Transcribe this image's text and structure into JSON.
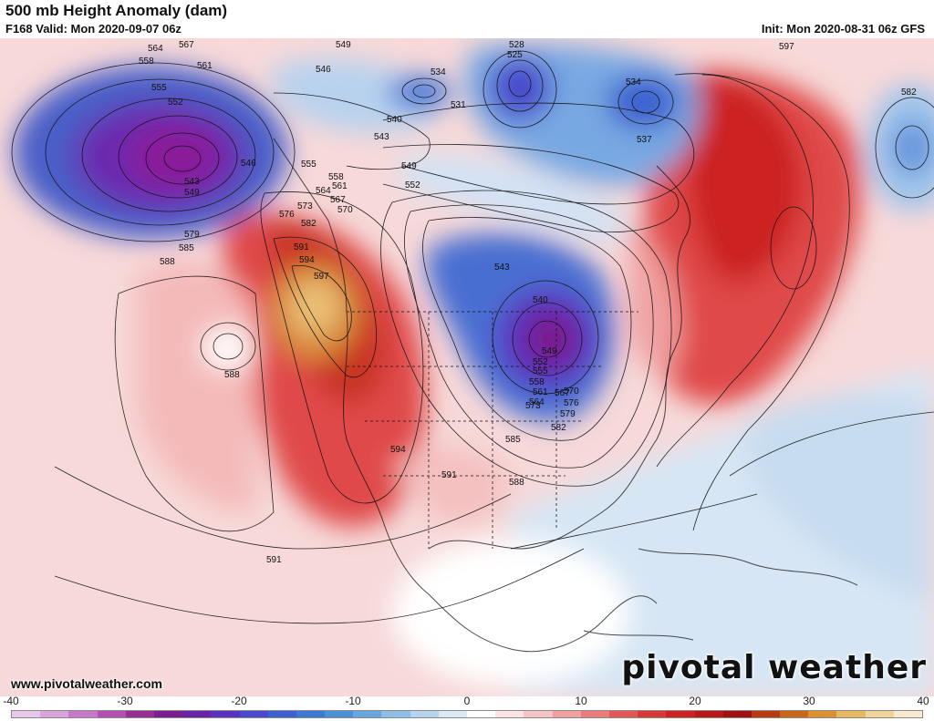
{
  "header": {
    "title": "500 mb Height Anomaly (dam)",
    "valid": "F168 Valid: Mon 2020-09-07 06z",
    "init": "Init: Mon 2020-08-31 06z GFS"
  },
  "footer": {
    "website": "www.pivotalweather.com",
    "brand": "pivotal weather"
  },
  "colorbar": {
    "min": -40,
    "max": 40,
    "tick_labels": [
      "-40",
      "-30",
      "-20",
      "-10",
      "0",
      "10",
      "20",
      "30",
      "40"
    ],
    "colors": [
      "#e8c8ea",
      "#d9a4dc",
      "#c778c8",
      "#b24fb3",
      "#962e96",
      "#7a1f8f",
      "#6a22a8",
      "#5a32c0",
      "#4a48cc",
      "#3e60d0",
      "#3d78d4",
      "#4a90d8",
      "#68a6e0",
      "#8ebde8",
      "#b6d4f0",
      "#dbe9f7",
      "#ffffff",
      "#fbe4e4",
      "#f6c4c4",
      "#f0a0a0",
      "#ea7c7c",
      "#e25858",
      "#d83838",
      "#cc2222",
      "#b81818",
      "#a01212",
      "#b83a12",
      "#cc6618",
      "#dc9030",
      "#e8b860",
      "#f0d49a",
      "#f7ead0"
    ]
  },
  "contour_labels": [
    "564",
    "567",
    "549",
    "558",
    "561",
    "555",
    "552",
    "546",
    "543",
    "549",
    "534",
    "528",
    "525",
    "531",
    "534",
    "537",
    "540",
    "543",
    "546",
    "549",
    "552",
    "555",
    "558",
    "561",
    "564",
    "567",
    "570",
    "573",
    "576",
    "579",
    "582",
    "585",
    "588",
    "591",
    "594",
    "597",
    "540",
    "543",
    "549",
    "552",
    "555",
    "558",
    "561",
    "564",
    "567",
    "570",
    "573",
    "576",
    "579",
    "582",
    "585",
    "588",
    "591",
    "594",
    "597",
    "582",
    "588",
    "591"
  ]
}
